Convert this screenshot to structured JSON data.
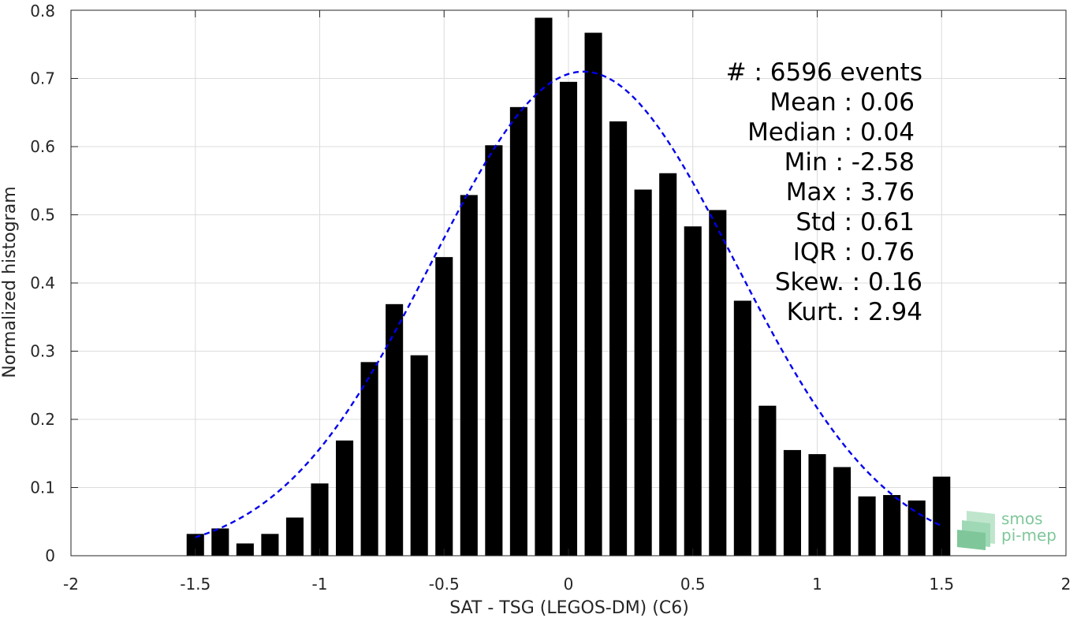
{
  "chart_data": {
    "type": "bar",
    "xlabel": "SAT - TSG (LEGOS-DM) (C6)",
    "ylabel": "Normalized histogram",
    "xlim": [
      -2,
      2
    ],
    "ylim": [
      0,
      0.8
    ],
    "xticks": [
      "-2",
      "-1.5",
      "-1",
      "-0.5",
      "0",
      "0.5",
      "1",
      "1.5",
      "2"
    ],
    "xtick_values": [
      -2,
      -1.5,
      -1,
      -0.5,
      0,
      0.5,
      1,
      1.5,
      2
    ],
    "yticks": [
      "0",
      "0.1",
      "0.2",
      "0.3",
      "0.4",
      "0.5",
      "0.6",
      "0.7",
      "0.8"
    ],
    "ytick_values": [
      0,
      0.1,
      0.2,
      0.3,
      0.4,
      0.5,
      0.6,
      0.7,
      0.8
    ],
    "grid": true,
    "bar_color": "#000000",
    "bar_width": 0.07,
    "bins": [
      {
        "x": -1.5,
        "y": 0.032
      },
      {
        "x": -1.4,
        "y": 0.04
      },
      {
        "x": -1.3,
        "y": 0.018
      },
      {
        "x": -1.2,
        "y": 0.032
      },
      {
        "x": -1.1,
        "y": 0.056
      },
      {
        "x": -1.0,
        "y": 0.106
      },
      {
        "x": -0.9,
        "y": 0.169
      },
      {
        "x": -0.8,
        "y": 0.284
      },
      {
        "x": -0.7,
        "y": 0.369
      },
      {
        "x": -0.6,
        "y": 0.294
      },
      {
        "x": -0.5,
        "y": 0.438
      },
      {
        "x": -0.4,
        "y": 0.529
      },
      {
        "x": -0.3,
        "y": 0.602
      },
      {
        "x": -0.2,
        "y": 0.658
      },
      {
        "x": -0.1,
        "y": 0.789
      },
      {
        "x": 0.0,
        "y": 0.695
      },
      {
        "x": 0.1,
        "y": 0.767
      },
      {
        "x": 0.2,
        "y": 0.637
      },
      {
        "x": 0.3,
        "y": 0.537
      },
      {
        "x": 0.4,
        "y": 0.561
      },
      {
        "x": 0.5,
        "y": 0.483
      },
      {
        "x": 0.6,
        "y": 0.507
      },
      {
        "x": 0.7,
        "y": 0.374
      },
      {
        "x": 0.8,
        "y": 0.22
      },
      {
        "x": 0.9,
        "y": 0.155
      },
      {
        "x": 1.0,
        "y": 0.149
      },
      {
        "x": 1.1,
        "y": 0.13
      },
      {
        "x": 1.2,
        "y": 0.087
      },
      {
        "x": 1.3,
        "y": 0.089
      },
      {
        "x": 1.4,
        "y": 0.081
      },
      {
        "x": 1.5,
        "y": 0.116
      }
    ],
    "fit_curve": {
      "style": "dashed",
      "color": "#0000ee",
      "mean": 0.06,
      "std": 0.61,
      "peak": 0.71,
      "x_range": [
        -1.5,
        1.5
      ]
    },
    "stats_annotation": [
      "#  : 6596 events",
      "Mean : 0.06",
      "Median : 0.04",
      "Min : -2.58",
      "Max : 3.76",
      "Std : 0.61",
      "IQR : 0.76",
      "Skew. : 0.16",
      "Kurt. : 2.94"
    ]
  },
  "logo": {
    "line1": "smos",
    "line2": "pi-mep",
    "color": "#7fc79a"
  }
}
